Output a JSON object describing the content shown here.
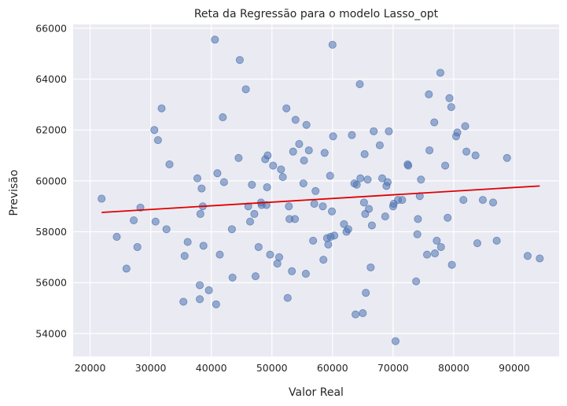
{
  "chart_data": {
    "type": "scatter",
    "title": "Reta da Regressão para o modelo Lasso_opt",
    "xlabel": "Valor Real",
    "ylabel": "Previsão",
    "xlim": [
      17200,
      97400
    ],
    "ylim": [
      53100,
      66150
    ],
    "xticks": [
      20000,
      30000,
      40000,
      50000,
      60000,
      70000,
      80000,
      90000
    ],
    "yticks": [
      54000,
      56000,
      58000,
      60000,
      62000,
      64000,
      66000
    ],
    "xtick_labels": [
      "20000",
      "30000",
      "40000",
      "50000",
      "60000",
      "70000",
      "80000",
      "90000"
    ],
    "ytick_labels": [
      "54000",
      "56000",
      "58000",
      "60000",
      "62000",
      "64000",
      "66000"
    ],
    "grid": true,
    "colors": {
      "background": "#eaeaf2",
      "grid": "#ffffff",
      "points": "#4c72b0",
      "regression_line": "#e00000"
    },
    "points": [
      [
        21900,
        59300
      ],
      [
        24400,
        57800
      ],
      [
        26000,
        56550
      ],
      [
        27200,
        58450
      ],
      [
        27800,
        57400
      ],
      [
        28300,
        58950
      ],
      [
        30600,
        62000
      ],
      [
        30800,
        58400
      ],
      [
        31200,
        61600
      ],
      [
        31800,
        62850
      ],
      [
        32600,
        58100
      ],
      [
        33100,
        60650
      ],
      [
        35400,
        55250
      ],
      [
        35600,
        57050
      ],
      [
        36100,
        57600
      ],
      [
        37700,
        60100
      ],
      [
        38100,
        55900
      ],
      [
        38100,
        55350
      ],
      [
        38200,
        58700
      ],
      [
        38400,
        59700
      ],
      [
        38600,
        59000
      ],
      [
        38700,
        57450
      ],
      [
        39600,
        55700
      ],
      [
        40600,
        65550
      ],
      [
        40800,
        55150
      ],
      [
        41000,
        60300
      ],
      [
        41400,
        57100
      ],
      [
        41900,
        62500
      ],
      [
        42100,
        59950
      ],
      [
        43400,
        58100
      ],
      [
        43500,
        56200
      ],
      [
        44500,
        60900
      ],
      [
        44700,
        64750
      ],
      [
        45700,
        63600
      ],
      [
        46100,
        59000
      ],
      [
        46400,
        58400
      ],
      [
        46700,
        59850
      ],
      [
        47100,
        58700
      ],
      [
        47300,
        56250
      ],
      [
        47800,
        57400
      ],
      [
        48200,
        59150
      ],
      [
        48300,
        59050
      ],
      [
        48900,
        60850
      ],
      [
        49100,
        59050
      ],
      [
        49200,
        59750
      ],
      [
        49300,
        61000
      ],
      [
        49700,
        57100
      ],
      [
        50200,
        60600
      ],
      [
        50900,
        56750
      ],
      [
        51200,
        57000
      ],
      [
        51500,
        60450
      ],
      [
        51800,
        60150
      ],
      [
        52400,
        62850
      ],
      [
        52600,
        55400
      ],
      [
        52800,
        59000
      ],
      [
        52900,
        58500
      ],
      [
        53300,
        56450
      ],
      [
        53500,
        61150
      ],
      [
        53800,
        58500
      ],
      [
        53900,
        62400
      ],
      [
        54500,
        61450
      ],
      [
        55200,
        59900
      ],
      [
        55300,
        60800
      ],
      [
        55600,
        56350
      ],
      [
        55700,
        62200
      ],
      [
        56100,
        61200
      ],
      [
        56800,
        57650
      ],
      [
        57000,
        59100
      ],
      [
        57200,
        59600
      ],
      [
        58400,
        59000
      ],
      [
        58500,
        56900
      ],
      [
        58700,
        61100
      ],
      [
        59100,
        57750
      ],
      [
        59300,
        57500
      ],
      [
        59600,
        60200
      ],
      [
        59700,
        57800
      ],
      [
        59900,
        58800
      ],
      [
        60000,
        65350
      ],
      [
        60100,
        61750
      ],
      [
        60300,
        57850
      ],
      [
        61900,
        58300
      ],
      [
        62300,
        58000
      ],
      [
        62600,
        58100
      ],
      [
        63200,
        61800
      ],
      [
        63600,
        59900
      ],
      [
        63800,
        54750
      ],
      [
        64000,
        59850
      ],
      [
        64500,
        63800
      ],
      [
        64600,
        60100
      ],
      [
        65000,
        54800
      ],
      [
        65200,
        59150
      ],
      [
        65300,
        61050
      ],
      [
        65400,
        58700
      ],
      [
        65500,
        55600
      ],
      [
        65800,
        60050
      ],
      [
        66000,
        58900
      ],
      [
        66300,
        56600
      ],
      [
        66500,
        58250
      ],
      [
        66800,
        61950
      ],
      [
        67800,
        61400
      ],
      [
        68200,
        60100
      ],
      [
        68700,
        58600
      ],
      [
        68900,
        59800
      ],
      [
        69100,
        59950
      ],
      [
        69300,
        61950
      ],
      [
        70000,
        59000
      ],
      [
        70100,
        59100
      ],
      [
        70400,
        53700
      ],
      [
        70800,
        59250
      ],
      [
        71500,
        59250
      ],
      [
        72400,
        60650
      ],
      [
        72500,
        60600
      ],
      [
        73800,
        56050
      ],
      [
        74000,
        57900
      ],
      [
        74100,
        58500
      ],
      [
        74400,
        59400
      ],
      [
        74600,
        60050
      ],
      [
        75600,
        57100
      ],
      [
        75900,
        63400
      ],
      [
        76000,
        61200
      ],
      [
        76800,
        62300
      ],
      [
        76900,
        57150
      ],
      [
        77200,
        57650
      ],
      [
        77800,
        64250
      ],
      [
        77900,
        57400
      ],
      [
        78600,
        60600
      ],
      [
        79000,
        58550
      ],
      [
        79300,
        63250
      ],
      [
        79600,
        62900
      ],
      [
        79700,
        56700
      ],
      [
        80400,
        61750
      ],
      [
        80600,
        61900
      ],
      [
        81600,
        59250
      ],
      [
        81900,
        62150
      ],
      [
        82100,
        61150
      ],
      [
        83600,
        61000
      ],
      [
        83900,
        57550
      ],
      [
        84800,
        59250
      ],
      [
        86500,
        59150
      ],
      [
        87100,
        57650
      ],
      [
        88800,
        60900
      ],
      [
        92200,
        57050
      ],
      [
        94200,
        56950
      ]
    ],
    "regression_line": {
      "x": [
        21900,
        94200
      ],
      "y": [
        58760,
        59800
      ]
    }
  }
}
